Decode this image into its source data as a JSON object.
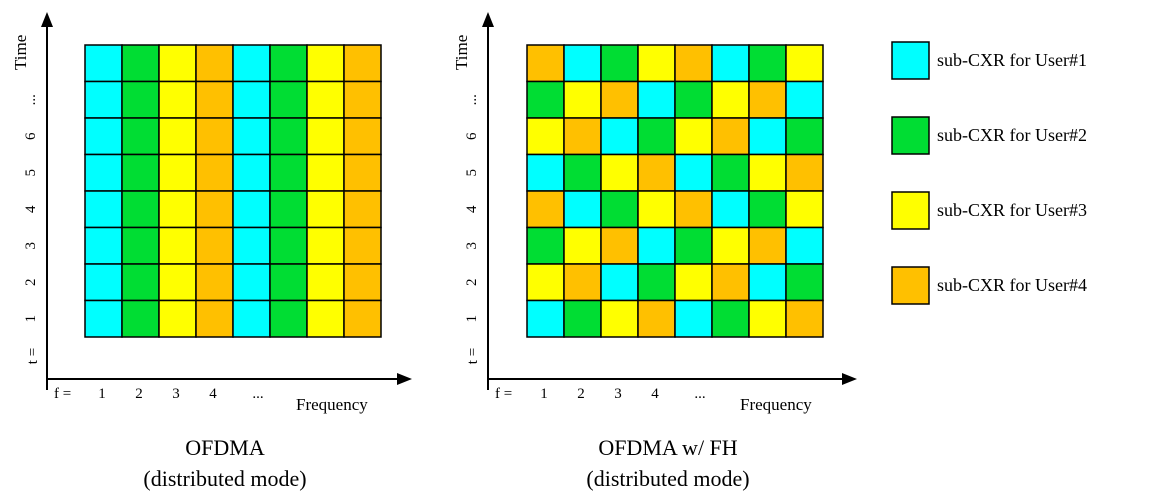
{
  "colors": {
    "user1": "#00ffff",
    "user2": "#00dd33",
    "user3": "#ffff00",
    "user4": "#ffc000"
  },
  "diagrams": [
    {
      "id": "ofdma",
      "y_axis_label": "Time",
      "x_axis_label": "Frequency",
      "t_prefix": "t =",
      "f_prefix": "f =",
      "t_ticks": [
        "1",
        "2",
        "3",
        "4",
        "5",
        "6",
        "..."
      ],
      "f_ticks": [
        "1",
        "2",
        "3",
        "4",
        "..."
      ],
      "caption_line1": "OFDMA",
      "caption_line2": "(distributed mode)",
      "grid": [
        [
          1,
          2,
          3,
          4,
          1,
          2,
          3,
          4
        ],
        [
          1,
          2,
          3,
          4,
          1,
          2,
          3,
          4
        ],
        [
          1,
          2,
          3,
          4,
          1,
          2,
          3,
          4
        ],
        [
          1,
          2,
          3,
          4,
          1,
          2,
          3,
          4
        ],
        [
          1,
          2,
          3,
          4,
          1,
          2,
          3,
          4
        ],
        [
          1,
          2,
          3,
          4,
          1,
          2,
          3,
          4
        ],
        [
          1,
          2,
          3,
          4,
          1,
          2,
          3,
          4
        ],
        [
          1,
          2,
          3,
          4,
          1,
          2,
          3,
          4
        ]
      ]
    },
    {
      "id": "ofdma-fh",
      "y_axis_label": "Time",
      "x_axis_label": "Frequency",
      "t_prefix": "t =",
      "f_prefix": "f =",
      "t_ticks": [
        "1",
        "2",
        "3",
        "4",
        "5",
        "6",
        "..."
      ],
      "f_ticks": [
        "1",
        "2",
        "3",
        "4",
        "..."
      ],
      "caption_line1": "OFDMA w/ FH",
      "caption_line2": "(distributed mode)",
      "grid": [
        [
          4,
          1,
          2,
          3,
          4,
          1,
          2,
          3
        ],
        [
          2,
          3,
          4,
          1,
          2,
          3,
          4,
          1
        ],
        [
          3,
          4,
          1,
          2,
          3,
          4,
          1,
          2
        ],
        [
          1,
          2,
          3,
          4,
          1,
          2,
          3,
          4
        ],
        [
          4,
          1,
          2,
          3,
          4,
          1,
          2,
          3
        ],
        [
          2,
          3,
          4,
          1,
          2,
          3,
          4,
          1
        ],
        [
          3,
          4,
          1,
          2,
          3,
          4,
          1,
          2
        ],
        [
          1,
          2,
          3,
          4,
          1,
          2,
          3,
          4
        ]
      ]
    }
  ],
  "legend": [
    {
      "user": 1,
      "label": "sub-CXR for User#1"
    },
    {
      "user": 2,
      "label": "sub-CXR for User#2"
    },
    {
      "user": 3,
      "label": "sub-CXR for User#3"
    },
    {
      "user": 4,
      "label": "sub-CXR for User#4"
    }
  ]
}
